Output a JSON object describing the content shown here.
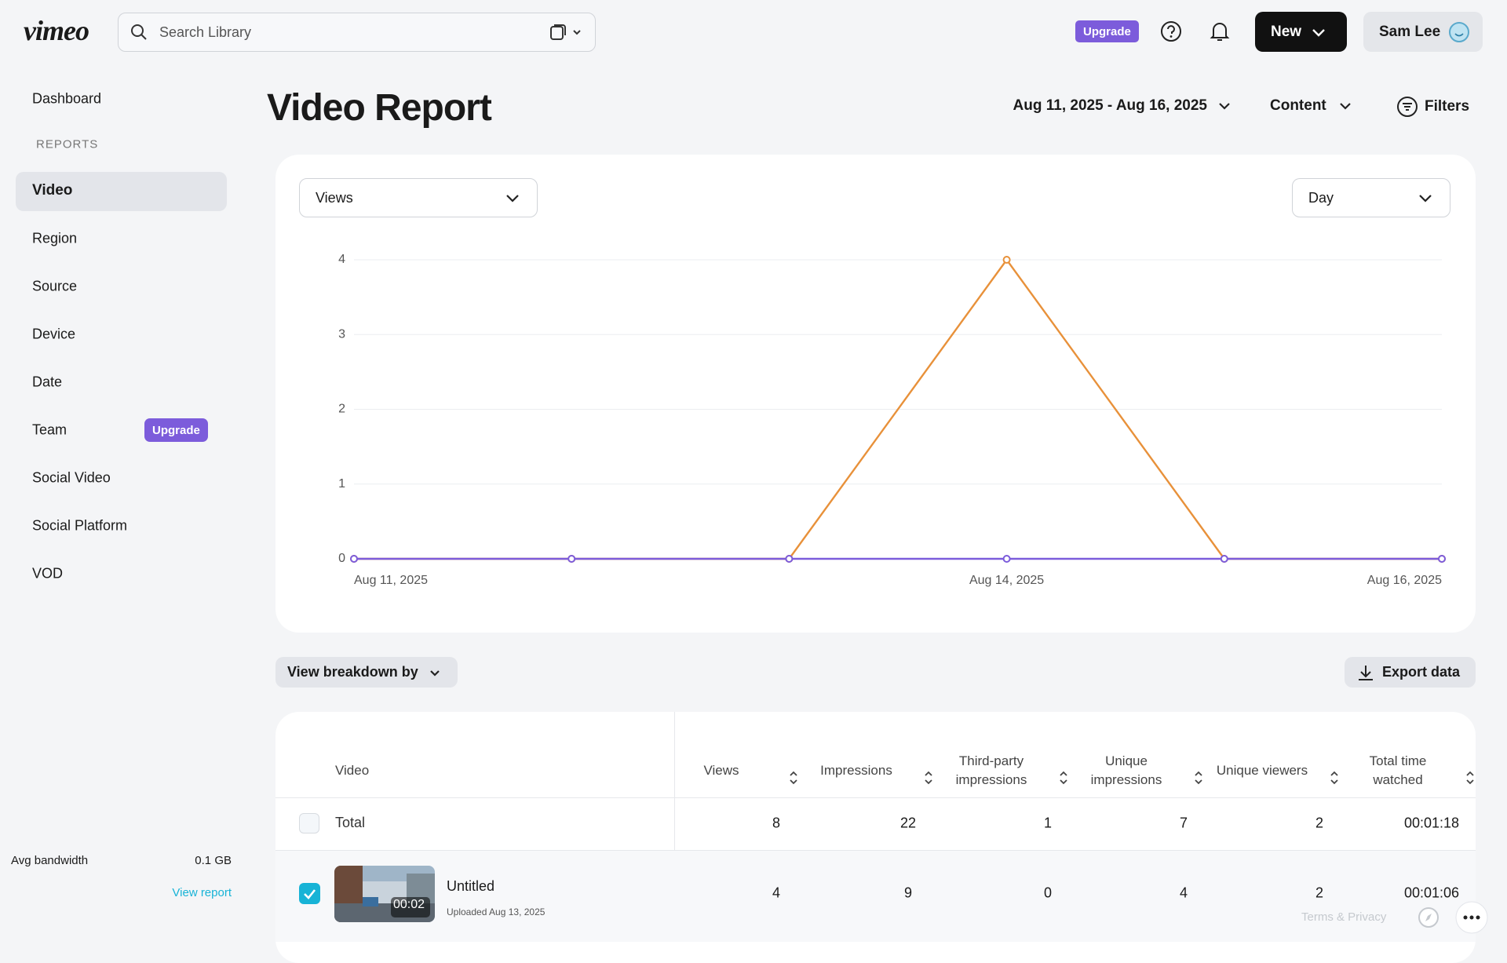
{
  "header": {
    "logo": "vimeo",
    "search_placeholder": "Search Library",
    "upgrade": "Upgrade",
    "new_button": "New",
    "user": "Sam Lee"
  },
  "sidebar": {
    "dashboard": "Dashboard",
    "section": "REPORTS",
    "items": [
      "Video",
      "Region",
      "Source",
      "Device",
      "Date",
      "Team",
      "Social Video",
      "Social Platform",
      "VOD"
    ],
    "team_badge": "Upgrade",
    "bandwidth_label": "Avg bandwidth",
    "bandwidth_value": "0.1 GB",
    "view_report": "View report"
  },
  "page": {
    "title": "Video Report",
    "date_range": "Aug 11, 2025 - Aug 16, 2025",
    "content": "Content",
    "filters": "Filters",
    "metric": "Views",
    "interval": "Day",
    "breakdown": "View breakdown by",
    "export": "Export data"
  },
  "chart_data": {
    "type": "line",
    "categories": [
      "Aug 11, 2025",
      null,
      null,
      "Aug 14, 2025",
      null,
      "Aug 16, 2025"
    ],
    "series": [
      {
        "color": "#e8913a",
        "values": [
          0,
          0,
          0,
          4,
          0,
          0
        ]
      },
      {
        "color": "#7c5cdb",
        "values": [
          0,
          0,
          0,
          0,
          0,
          0
        ]
      }
    ],
    "ylim": [
      0,
      4
    ],
    "yticks": [
      0,
      1,
      2,
      3,
      4
    ],
    "grid": true
  },
  "table": {
    "columns": [
      "Video",
      "Views",
      "Impressions",
      "Third-party impressions",
      "Unique impressions",
      "Unique viewers",
      "Total time watched"
    ],
    "rows": [
      [
        "Total",
        8,
        22,
        1,
        7,
        2,
        "00:01:18"
      ],
      [
        "Untitled",
        4,
        9,
        0,
        4,
        2,
        "00:01:06"
      ]
    ],
    "uploaded": "Uploaded Aug 13, 2025",
    "duration": "00:02"
  },
  "footer": {
    "terms": "Terms & Privacy"
  }
}
